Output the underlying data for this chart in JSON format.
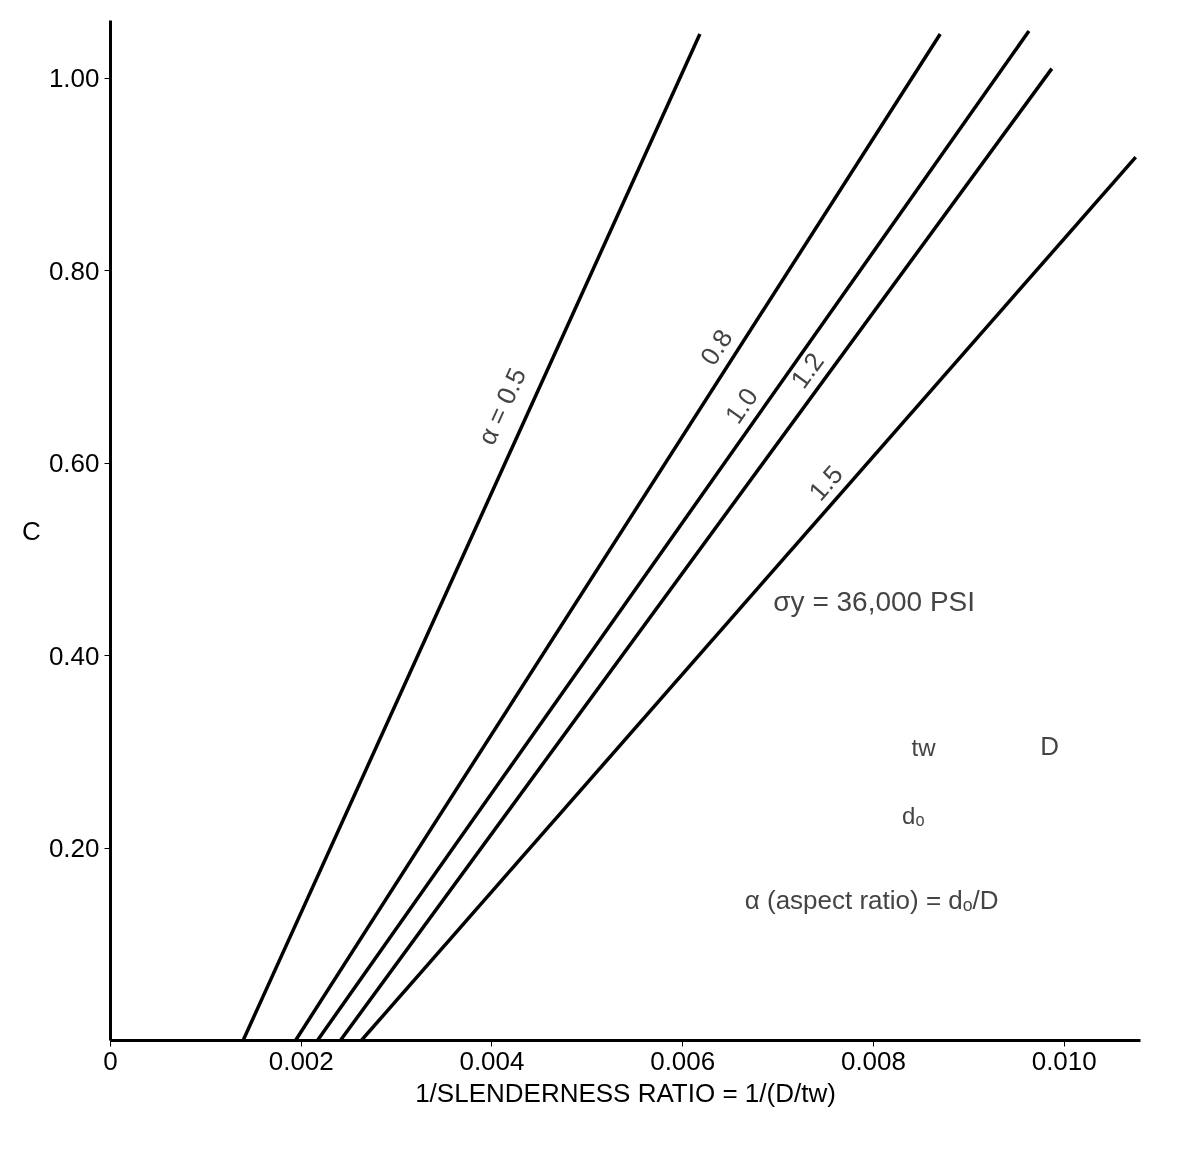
{
  "chart_data": {
    "type": "line",
    "xlabel": "1/SLENDERNESS RATIO = 1/(D/tw)",
    "ylabel": "C",
    "xlim": [
      0,
      0.0108
    ],
    "ylim": [
      0,
      1.06
    ],
    "xticks": [
      0,
      0.002,
      0.004,
      0.006,
      0.008,
      {
        "value": 0.01,
        "label": "0.010"
      }
    ],
    "yticks": [
      {
        "value": 0.2,
        "label": "0.20"
      },
      {
        "value": 0.4,
        "label": "0.40"
      },
      {
        "value": 0.6,
        "label": "0.60"
      },
      {
        "value": 0.8,
        "label": "0.80"
      },
      {
        "value": 1.0,
        "label": "1.00"
      }
    ],
    "grid": false,
    "line_style": "solid",
    "series": [
      {
        "name": "α = 0.5",
        "color": "#000000",
        "x": [
          0.00139,
          0.00618
        ],
        "values": [
          0,
          1.046
        ]
      },
      {
        "name": "0.8",
        "color": "#000000",
        "x": [
          0.00194,
          0.0087
        ],
        "values": [
          0,
          1.046
        ]
      },
      {
        "name": "1.0",
        "color": "#000000",
        "x": [
          0.00217,
          0.00963
        ],
        "values": [
          0,
          1.049
        ]
      },
      {
        "name": "1.2",
        "color": "#000000",
        "x": [
          0.00241,
          0.00987
        ],
        "values": [
          0,
          1.01
        ]
      },
      {
        "name": "1.5",
        "color": "#000000",
        "x": [
          0.00263,
          0.01075
        ],
        "values": [
          0,
          0.918
        ]
      }
    ],
    "annotations": [
      "σy = 36,000 PSI",
      "tw",
      "D",
      "dₒ",
      "α (aspect ratio) = dₒ/D"
    ]
  }
}
